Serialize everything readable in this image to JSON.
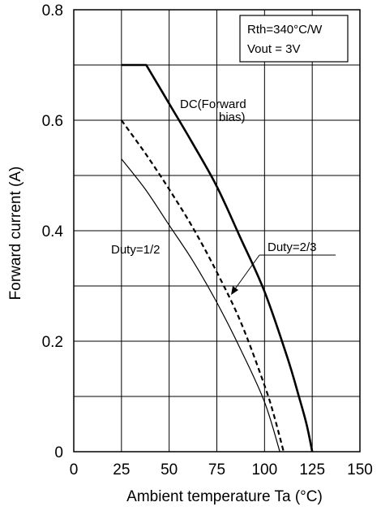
{
  "chart_data": {
    "type": "line",
    "xlabel": "Ambient temperature  Ta  (°C)",
    "ylabel": "Forward current  (A)",
    "xlim": [
      0,
      150
    ],
    "ylim": [
      0,
      0.8
    ],
    "x_ticks": [
      0,
      25,
      50,
      75,
      100,
      125,
      150
    ],
    "x_tick_labels": [
      "0",
      "25",
      "50",
      "75",
      "100",
      "125",
      "150"
    ],
    "y_ticks": [
      0,
      0.2,
      0.4,
      0.6,
      0.8
    ],
    "y_tick_labels": [
      "0",
      "0.2",
      "0.4",
      "0.6",
      "0.8"
    ],
    "grid": true,
    "legend_box": [
      "Rth=340°C/W",
      "Vout  = 3V"
    ],
    "series": [
      {
        "name": "DC(Forward bias)",
        "label_lines": [
          "DC(Forward",
          "bias)"
        ],
        "style": "solid-thick",
        "points": [
          [
            25,
            0.7
          ],
          [
            38,
            0.7
          ],
          [
            50,
            0.63
          ],
          [
            62,
            0.56
          ],
          [
            75,
            0.48
          ],
          [
            87,
            0.39
          ],
          [
            100,
            0.29
          ],
          [
            112,
            0.17
          ],
          [
            118,
            0.1
          ],
          [
            122,
            0.05
          ],
          [
            125,
            0.0
          ]
        ]
      },
      {
        "name": "Duty=2/3",
        "label_lines": [
          "Duty=2/3"
        ],
        "style": "dashed",
        "points": [
          [
            25,
            0.6
          ],
          [
            37.5,
            0.54
          ],
          [
            50,
            0.475
          ],
          [
            62.5,
            0.405
          ],
          [
            75,
            0.325
          ],
          [
            87.5,
            0.235
          ],
          [
            100,
            0.12
          ],
          [
            105,
            0.065
          ],
          [
            110,
            0.0
          ]
        ]
      },
      {
        "name": "Duty=1/2",
        "label_lines": [
          "Duty=1/2"
        ],
        "style": "solid-thin",
        "points": [
          [
            25,
            0.53
          ],
          [
            37.5,
            0.475
          ],
          [
            50,
            0.41
          ],
          [
            62.5,
            0.345
          ],
          [
            75,
            0.27
          ],
          [
            87.5,
            0.185
          ],
          [
            100,
            0.09
          ],
          [
            108,
            0.0
          ]
        ]
      }
    ]
  }
}
